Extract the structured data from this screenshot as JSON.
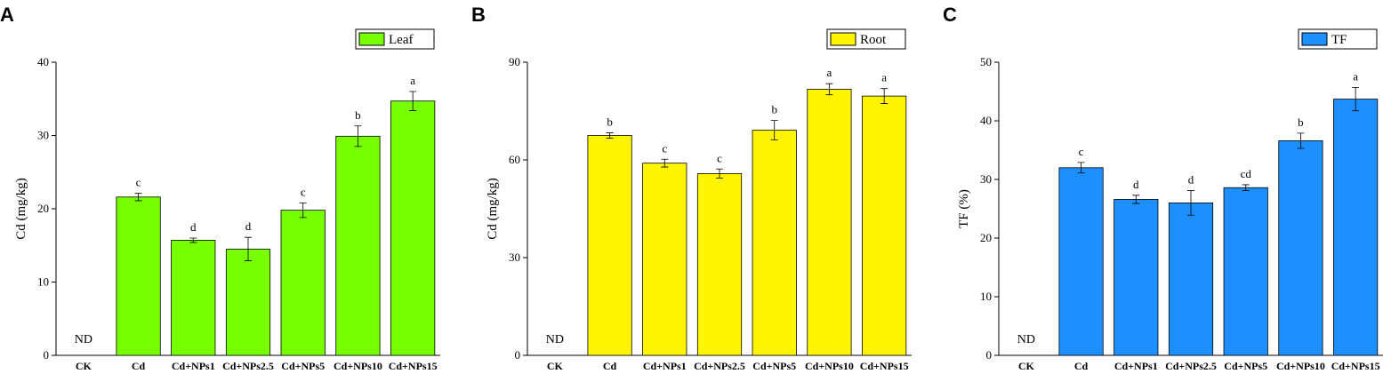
{
  "chart_data": [
    {
      "type": "bar",
      "panel": "A",
      "ylabel": "Cd (mg/kg)",
      "categories": [
        "CK",
        "Cd",
        "Cd+NPs1",
        "Cd+NPs2.5",
        "Cd+NPs5",
        "Cd+NPs10",
        "Cd+NPs15"
      ],
      "series": [
        {
          "name": "Leaf",
          "color": "#77ff00",
          "values": [
            null,
            21.6,
            15.7,
            14.5,
            19.8,
            29.9,
            34.7
          ],
          "errors": [
            null,
            0.5,
            0.3,
            1.6,
            1.0,
            1.4,
            1.3
          ]
        }
      ],
      "annotations": [
        "ND",
        "c",
        "d",
        "d",
        "c",
        "b",
        "a"
      ],
      "ylim": [
        0,
        40
      ],
      "yticks": [
        0,
        10,
        20,
        30,
        40
      ],
      "legend": "top-right"
    },
    {
      "type": "bar",
      "panel": "B",
      "ylabel": "Cd (mg/kg)",
      "categories": [
        "CK",
        "Cd",
        "Cd+NPs1",
        "Cd+NPs2.5",
        "Cd+NPs5",
        "Cd+NPs10",
        "Cd+NPs15"
      ],
      "series": [
        {
          "name": "Root",
          "color": "#fff500",
          "values": [
            null,
            67.5,
            59.0,
            55.8,
            69.1,
            81.7,
            79.6
          ],
          "errors": [
            null,
            0.8,
            1.2,
            1.4,
            3.0,
            1.7,
            2.3
          ]
        }
      ],
      "annotations": [
        "ND",
        "b",
        "c",
        "c",
        "b",
        "a",
        "a"
      ],
      "ylim": [
        0,
        90
      ],
      "yticks": [
        0,
        30,
        60,
        90
      ],
      "legend": "top-right"
    },
    {
      "type": "bar",
      "panel": "C",
      "ylabel": "TF (%)",
      "categories": [
        "CK",
        "Cd",
        "Cd+NPs1",
        "Cd+NPs2.5",
        "Cd+NPs5",
        "Cd+NPs10",
        "Cd+NPs15"
      ],
      "series": [
        {
          "name": "TF",
          "color": "#1e8fff",
          "values": [
            null,
            32.0,
            26.6,
            26.0,
            28.6,
            36.6,
            43.7
          ],
          "errors": [
            null,
            0.9,
            0.7,
            2.1,
            0.5,
            1.3,
            2.0
          ]
        }
      ],
      "annotations": [
        "ND",
        "c",
        "d",
        "d",
        "cd",
        "b",
        "a"
      ],
      "ylim": [
        0,
        50
      ],
      "yticks": [
        0,
        10,
        20,
        30,
        40,
        50
      ],
      "legend": "top-right"
    }
  ]
}
